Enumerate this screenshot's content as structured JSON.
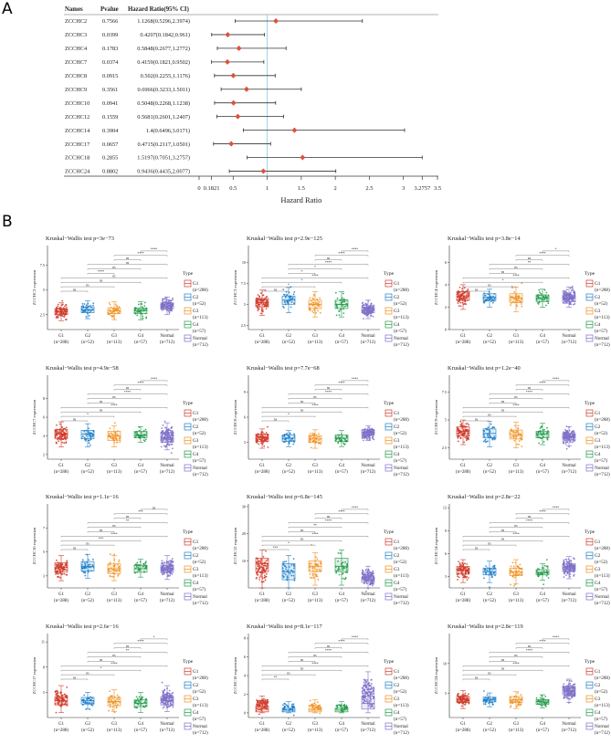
{
  "panel_labels": {
    "a": "A",
    "b": "B"
  },
  "chart_data": [
    {
      "type": "forest",
      "columns": [
        "Names",
        "Pvalue",
        "Hazard Ratio(95% CI)"
      ],
      "rows": [
        {
          "name": "ZCCHC2",
          "pvalue": "0.7566",
          "hr_text": "1.1268(0.5296,2.3974)",
          "hr": 1.1268,
          "lo": 0.5296,
          "hi": 2.3974
        },
        {
          "name": "ZCCHC3",
          "pvalue": "0.0399",
          "hr_text": "0.4207(0.1842,0.961)",
          "hr": 0.4207,
          "lo": 0.1842,
          "hi": 0.961
        },
        {
          "name": "ZCCHC4",
          "pvalue": "0.1783",
          "hr_text": "0.5848(0.2677,1.2772)",
          "hr": 0.5848,
          "lo": 0.2677,
          "hi": 1.2772
        },
        {
          "name": "ZCCHC7",
          "pvalue": "0.0374",
          "hr_text": "0.4159(0.1821,0.9502)",
          "hr": 0.4159,
          "lo": 0.1821,
          "hi": 0.9502
        },
        {
          "name": "ZCCHC8",
          "pvalue": "0.0915",
          "hr_text": "0.502(0.2255,1.1176)",
          "hr": 0.502,
          "lo": 0.2255,
          "hi": 1.1176
        },
        {
          "name": "ZCCHC9",
          "pvalue": "0.3561",
          "hr_text": "0.6966(0.3233,1.5011)",
          "hr": 0.6966,
          "lo": 0.3233,
          "hi": 1.5011
        },
        {
          "name": "ZCCHC10",
          "pvalue": "0.0941",
          "hr_text": "0.5048(0.2268,1.1238)",
          "hr": 0.5048,
          "lo": 0.2268,
          "hi": 1.1238
        },
        {
          "name": "ZCCHC12",
          "pvalue": "0.1559",
          "hr_text": "0.5681(0.2601,1.2407)",
          "hr": 0.5681,
          "lo": 0.2601,
          "hi": 1.2407
        },
        {
          "name": "ZCCHC14",
          "pvalue": "0.3904",
          "hr_text": "1.4(0.6496,3.0171)",
          "hr": 1.4,
          "lo": 0.6496,
          "hi": 3.0171
        },
        {
          "name": "ZCCHC17",
          "pvalue": "0.0657",
          "hr_text": "0.4715(0.2117,1.0501)",
          "hr": 0.4715,
          "lo": 0.2117,
          "hi": 1.0501
        },
        {
          "name": "ZCCHC18",
          "pvalue": "0.2855",
          "hr_text": "1.5197(0.7051,3.2757)",
          "hr": 1.5197,
          "lo": 0.7051,
          "hi": 3.2757
        },
        {
          "name": "ZCCHC24",
          "pvalue": "0.8802",
          "hr_text": "0.9436(0.4435,2.0077)",
          "hr": 0.9436,
          "lo": 0.4435,
          "hi": 2.0077
        }
      ],
      "xlabel": "Hazard Ratio",
      "xlim": [
        0,
        3.5
      ],
      "xticks": [
        "0",
        "0.1821",
        "0.5",
        "1",
        "1.5",
        "2",
        "2.5",
        "3",
        "3.2757",
        "3.5"
      ],
      "reference_line": 1,
      "colors": {
        "point": "#d9533f",
        "ci": "#333333",
        "reference": "#8ec9dc"
      }
    },
    {
      "type": "box",
      "groups": [
        {
          "name": "G1",
          "n": "(n=288)",
          "color": "#d03a2a"
        },
        {
          "name": "G2",
          "n": "(n=52)",
          "color": "#1f7fc8"
        },
        {
          "name": "G3",
          "n": "(n=113)",
          "color": "#f0901e"
        },
        {
          "name": "G4",
          "n": "(n=57)",
          "color": "#229a4a"
        },
        {
          "name": "Normal",
          "n": "(n=712)",
          "color": "#7f70c8"
        }
      ],
      "legend_title": "Type",
      "legend_placement": "right",
      "comparisons": [
        [
          "G1",
          "G2"
        ],
        [
          "G1",
          "G3"
        ],
        [
          "G1",
          "G4"
        ],
        [
          "G1",
          "Normal"
        ],
        [
          "G2",
          "G3"
        ],
        [
          "G2",
          "G4"
        ],
        [
          "G2",
          "Normal"
        ],
        [
          "G3",
          "G4"
        ],
        [
          "G3",
          "Normal"
        ],
        [
          "G4",
          "Normal"
        ]
      ],
      "panels": [
        {
          "title": "Kruskal−Wallis test p=3e−73",
          "ylabel": "ZCCHC2 expression",
          "ylim": [
            1,
            9.5
          ],
          "yticks": [
            2.5,
            5.0,
            7.5
          ],
          "boxes": [
            [
              1.9,
              2.5,
              2.8,
              3.1,
              3.7
            ],
            [
              2.1,
              2.7,
              3.0,
              3.3,
              3.9
            ],
            [
              2.0,
              2.6,
              2.9,
              3.2,
              3.8
            ],
            [
              2.0,
              2.6,
              2.9,
              3.2,
              3.8
            ],
            [
              2.5,
              3.1,
              3.4,
              3.7,
              4.3
            ]
          ],
          "sig": [
            "ns",
            "ns",
            "ns",
            "ns",
            "****",
            "ns",
            "ns",
            "ns",
            "****",
            "****"
          ]
        },
        {
          "title": "Kruskal−Wallis test p=2.9e−125",
          "ylabel": "ZCCHC3 expression",
          "ylim": [
            2,
            12
          ],
          "yticks": [
            2.5,
            5.0,
            7.5,
            10.0
          ],
          "boxes": [
            [
              3.7,
              4.7,
              5.2,
              5.7,
              6.7
            ],
            [
              4.0,
              5.0,
              5.5,
              6.0,
              7.0
            ],
            [
              3.5,
              4.5,
              5.0,
              5.5,
              6.5
            ],
            [
              3.5,
              4.5,
              5.0,
              5.5,
              6.5
            ],
            [
              3.3,
              4.0,
              4.3,
              4.6,
              5.5
            ]
          ],
          "sig": [
            "ns",
            "*",
            "*",
            "****",
            "*",
            "*",
            "****",
            "ns",
            "****",
            "****"
          ]
        },
        {
          "title": "Kruskal−Wallis test p=3.8e−14",
          "ylabel": "ZCCHC4 expression",
          "ylim": [
            0,
            7.5
          ],
          "yticks": [
            0,
            2,
            4,
            6
          ],
          "boxes": [
            [
              1.8,
              2.6,
              3.0,
              3.4,
              4.0
            ],
            [
              2.0,
              2.6,
              2.9,
              3.2,
              3.6
            ],
            [
              1.6,
              2.4,
              2.8,
              3.2,
              3.8
            ],
            [
              2.0,
              2.5,
              2.8,
              3.1,
              3.6
            ],
            [
              2.0,
              2.5,
              2.8,
              3.1,
              3.8
            ]
          ],
          "sig": [
            "ns",
            "ns",
            "*",
            "****",
            "ns",
            "ns",
            "**",
            "ns",
            "****",
            "*"
          ]
        },
        {
          "title": "Kruskal−Wallis test p=4.9e−58",
          "ylabel": "ZCCHC7 expression",
          "ylim": [
            1.5,
            10.5
          ],
          "yticks": [
            2,
            4,
            6,
            8
          ],
          "boxes": [
            [
              2.8,
              3.7,
              4.2,
              4.7,
              5.5
            ],
            [
              2.8,
              3.7,
              4.2,
              4.6,
              5.3
            ],
            [
              2.8,
              3.5,
              4.0,
              4.5,
              5.1
            ],
            [
              3.3,
              3.8,
              4.1,
              4.5,
              5.0
            ],
            [
              2.5,
              3.3,
              3.8,
              4.4,
              5.4
            ]
          ],
          "sig": [
            "ns",
            "*",
            "ns",
            "****",
            "ns",
            "ns",
            "****",
            "ns",
            "****",
            "****"
          ]
        },
        {
          "title": "Kruskal−Wallis test p=7.7e−68",
          "ylabel": "ZCCHC8 expression",
          "ylim": [
            1,
            11
          ],
          "yticks": [
            3,
            6,
            9
          ],
          "boxes": [
            [
              2.3,
              3.1,
              3.6,
              4.0,
              4.6
            ],
            [
              2.5,
              3.1,
              3.5,
              3.9,
              4.4
            ],
            [
              2.3,
              3.0,
              3.4,
              3.8,
              4.5
            ],
            [
              2.5,
              3.1,
              3.5,
              3.9,
              4.4
            ],
            [
              3.2,
              3.9,
              4.2,
              4.5,
              5.0
            ]
          ],
          "sig": [
            "ns",
            "*",
            "ns",
            "****",
            "ns",
            "ns",
            "****",
            "ns",
            "****",
            "****"
          ]
        },
        {
          "title": "Kruskal−Wallis test p=1.2e−40",
          "ylabel": "ZCCHC9 expression",
          "ylim": [
            1.5,
            9
          ],
          "yticks": [
            2.5,
            5.0,
            7.5
          ],
          "boxes": [
            [
              2.8,
              3.6,
              4.0,
              4.4,
              5.0
            ],
            [
              2.6,
              3.4,
              3.8,
              4.2,
              4.9
            ],
            [
              2.5,
              3.3,
              3.7,
              4.1,
              4.8
            ],
            [
              2.8,
              3.4,
              3.7,
              4.0,
              4.7
            ],
            [
              2.7,
              3.2,
              3.5,
              3.8,
              4.4
            ]
          ],
          "sig": [
            "ns",
            "ns",
            "ns",
            "****",
            "ns",
            "ns",
            "****",
            "ns",
            "****",
            "****"
          ]
        },
        {
          "title": "Kruskal−Wallis test p=1.1e−16",
          "ylabel": "ZCCHC10 expression",
          "ylim": [
            2,
            9
          ],
          "yticks": [
            3,
            5,
            7
          ],
          "boxes": [
            [
              2.6,
              3.3,
              3.7,
              4.1,
              4.7
            ],
            [
              2.8,
              3.4,
              3.8,
              4.2,
              4.8
            ],
            [
              2.6,
              3.2,
              3.6,
              4.0,
              4.7
            ],
            [
              2.9,
              3.3,
              3.6,
              3.9,
              4.4
            ],
            [
              2.7,
              3.3,
              3.6,
              3.9,
              4.7
            ]
          ],
          "sig": [
            "ns",
            "ns",
            "***",
            "****",
            "ns",
            "ns",
            "**",
            "ns",
            "***",
            "ns"
          ]
        },
        {
          "title": "Kruskal−Wallis test p=6.8e−145",
          "ylabel": "ZCCHC12 expression",
          "ylim": [
            0,
            31
          ],
          "yticks": [
            10,
            20,
            30
          ],
          "boxes": [
            [
              0,
              6,
              9,
              11,
              14
            ],
            [
              0,
              3,
              6,
              9,
              12
            ],
            [
              1,
              6,
              8,
              10,
              13
            ],
            [
              1,
              6,
              8,
              11,
              14
            ],
            [
              0,
              2,
              3,
              4,
              8
            ]
          ],
          "sig": [
            "***",
            "*",
            "ns",
            "****",
            "ns",
            "**",
            "****",
            "ns",
            "****",
            "****"
          ]
        },
        {
          "title": "Kruskal−Wallis test p=2.8e−22",
          "ylabel": "ZCCHC14 expression",
          "ylim": [
            1.5,
            12.5
          ],
          "yticks": [
            3,
            6,
            9,
            12
          ],
          "boxes": [
            [
              2.2,
              3.3,
              3.8,
              4.3,
              5.2
            ],
            [
              2.2,
              3.2,
              3.6,
              4.1,
              5.0
            ],
            [
              2.0,
              3.1,
              3.6,
              4.1,
              5.2
            ],
            [
              2.5,
              3.2,
              3.5,
              3.9,
              4.7
            ],
            [
              2.7,
              3.7,
              4.2,
              4.7,
              5.6
            ]
          ],
          "sig": [
            "ns",
            "ns",
            "ns",
            "****",
            "ns",
            "ns",
            "****",
            "ns",
            "****",
            "****"
          ]
        },
        {
          "title": "Kruskal−Wallis test p=2.6e−16",
          "ylabel": "ZCCHC17 expression",
          "ylim": [
            2,
            12
          ],
          "yticks": [
            5,
            8,
            11
          ],
          "boxes": [
            [
              2.6,
              3.5,
              4.0,
              4.5,
              5.8
            ],
            [
              3.0,
              3.6,
              4.0,
              4.4,
              5.0
            ],
            [
              2.7,
              3.4,
              3.9,
              4.4,
              5.3
            ],
            [
              2.6,
              3.3,
              3.7,
              4.1,
              5.0
            ],
            [
              2.7,
              3.5,
              4.0,
              4.5,
              5.8
            ]
          ],
          "sig": [
            "ns",
            "ns",
            "*",
            "****",
            "ns",
            "ns",
            "**",
            "ns",
            "****",
            "*"
          ]
        },
        {
          "title": "Kruskal−Wallis test p=8.1e−117",
          "ylabel": "ZCCHC18 expression",
          "ylim": [
            -0.5,
            8.5
          ],
          "yticks": [
            0,
            2,
            4,
            6,
            8
          ],
          "boxes": [
            [
              0,
              0.1,
              0.4,
              0.7,
              1.8
            ],
            [
              0,
              0.1,
              0.3,
              0.5,
              1.2
            ],
            [
              0,
              0.1,
              0.3,
              0.5,
              1.4
            ],
            [
              0,
              0.1,
              0.3,
              0.5,
              1.2
            ],
            [
              0,
              0.4,
              1.0,
              1.8,
              4.4
            ]
          ],
          "sig": [
            "**",
            "ns",
            "ns",
            "****",
            "ns",
            "ns",
            "****",
            "ns",
            "****",
            "****"
          ]
        },
        {
          "title": "Kruskal−Wallis test p=2.8e−119",
          "ylabel": "ZCCHC24 expression",
          "ylim": [
            1,
            15
          ],
          "yticks": [
            5,
            10
          ],
          "boxes": [
            [
              2.5,
              3.5,
              4.0,
              4.5,
              5.5
            ],
            [
              2.8,
              3.6,
              4.0,
              4.4,
              5.1
            ],
            [
              2.5,
              3.5,
              4.0,
              4.5,
              5.3
            ],
            [
              2.6,
              3.2,
              3.6,
              4.0,
              4.8
            ],
            [
              3.5,
              4.8,
              5.5,
              6.2,
              7.4
            ]
          ],
          "sig": [
            "ns",
            "ns",
            "ns",
            "****",
            "ns",
            "ns",
            "****",
            "ns",
            "****",
            "****"
          ]
        }
      ]
    }
  ]
}
